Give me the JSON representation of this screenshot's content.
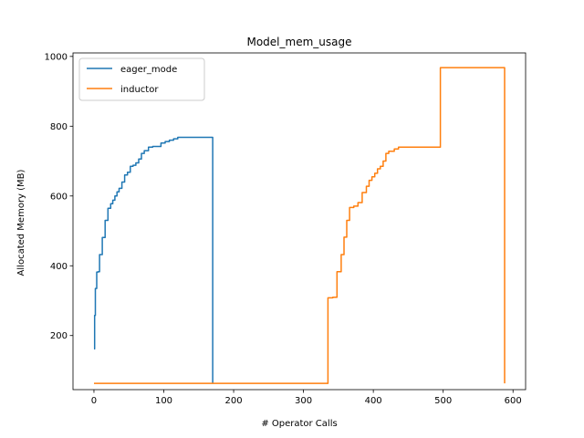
{
  "chart_data": {
    "type": "line",
    "title": "Model_mem_usage",
    "xlabel": "# Operator Calls",
    "ylabel": "Allocated Memory (MB)",
    "xlim": [
      -30,
      618
    ],
    "ylim": [
      45,
      1010
    ],
    "xticks": [
      0,
      100,
      200,
      300,
      400,
      500,
      600
    ],
    "yticks": [
      200,
      400,
      600,
      800,
      1000
    ],
    "grid": false,
    "legend_position": "top-left",
    "series": [
      {
        "name": "eager_mode",
        "color": "#1f77b4",
        "x": [
          0,
          1,
          1,
          2,
          2,
          4,
          4,
          6,
          6,
          8,
          8,
          12,
          12,
          16,
          16,
          20,
          20,
          24,
          24,
          27,
          27,
          30,
          30,
          33,
          33,
          36,
          36,
          40,
          40,
          44,
          44,
          48,
          48,
          52,
          52,
          56,
          56,
          60,
          60,
          64,
          64,
          68,
          68,
          72,
          72,
          78,
          78,
          84,
          84,
          96,
          96,
          102,
          102,
          108,
          108,
          114,
          114,
          120,
          120,
          170,
          170
        ],
        "y": [
          162,
          162,
          258,
          258,
          335,
          335,
          382,
          382,
          383,
          383,
          432,
          432,
          481,
          481,
          530,
          530,
          565,
          565,
          578,
          578,
          588,
          588,
          600,
          600,
          612,
          612,
          622,
          622,
          640,
          640,
          660,
          660,
          668,
          668,
          685,
          685,
          688,
          688,
          695,
          695,
          706,
          706,
          722,
          722,
          730,
          730,
          740,
          740,
          742,
          742,
          752,
          752,
          756,
          756,
          760,
          760,
          764,
          764,
          768,
          768,
          63
        ]
      },
      {
        "name": "inductor",
        "color": "#ff7f0e",
        "x": [
          0,
          335,
          335,
          342,
          342,
          348,
          348,
          354,
          354,
          358,
          358,
          362,
          362,
          366,
          366,
          372,
          372,
          378,
          378,
          384,
          384,
          390,
          390,
          394,
          394,
          398,
          398,
          402,
          402,
          406,
          406,
          410,
          410,
          414,
          414,
          418,
          418,
          422,
          422,
          430,
          430,
          436,
          436,
          496,
          496,
          588,
          588
        ],
        "y": [
          63,
          63,
          308,
          308,
          310,
          310,
          383,
          383,
          432,
          432,
          482,
          482,
          530,
          530,
          567,
          567,
          571,
          571,
          581,
          581,
          610,
          610,
          628,
          628,
          645,
          645,
          655,
          655,
          665,
          665,
          678,
          678,
          685,
          685,
          700,
          700,
          722,
          722,
          728,
          728,
          735,
          735,
          740,
          740,
          968,
          968,
          63
        ]
      }
    ]
  }
}
